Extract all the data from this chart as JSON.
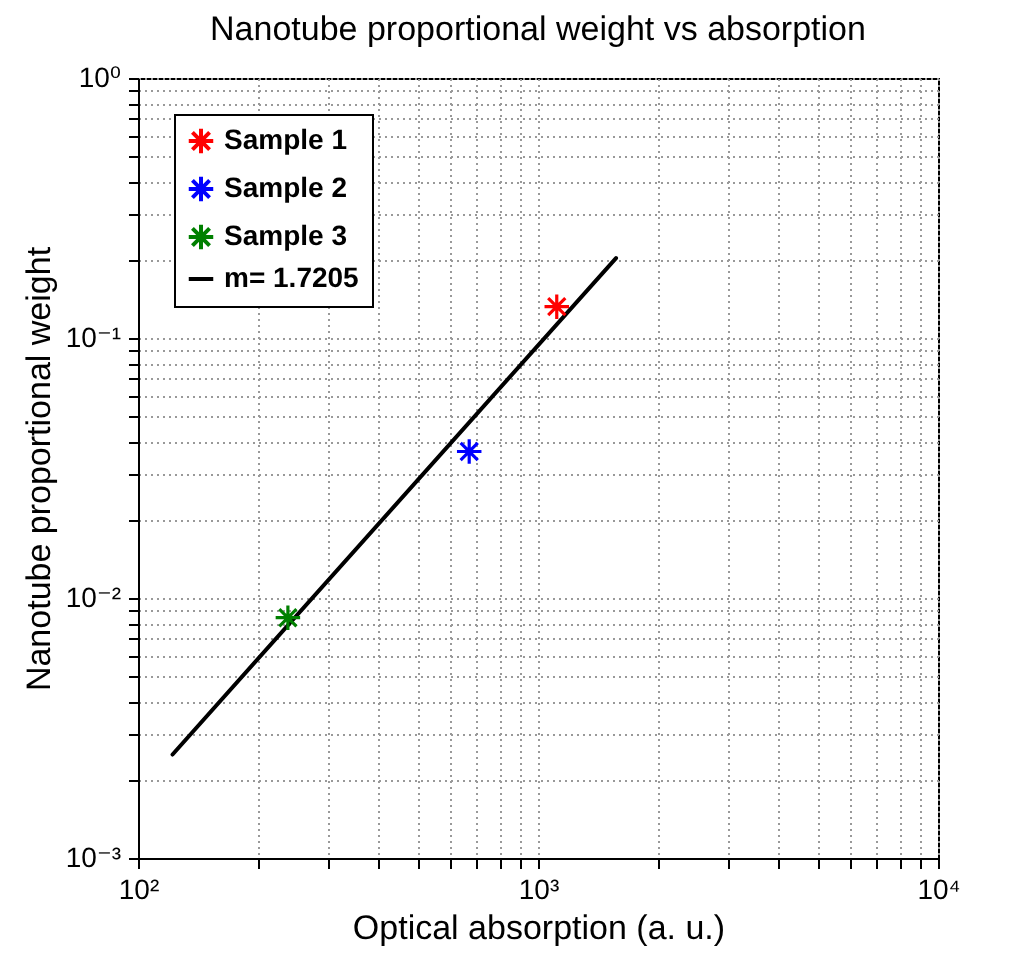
{
  "chart_data": {
    "type": "scatter",
    "title": "Nanotube proportional weight vs absorption",
    "xlabel": "Optical absorption (a. u.)",
    "ylabel": "Nanotube proportional weight",
    "log": "xy",
    "grid": true,
    "legend": "top left",
    "line_style": "solid",
    "xlim": [
      100,
      10000
    ],
    "ylim": [
      0.001,
      1
    ],
    "xticks": [
      {
        "value": 100,
        "label": "10²"
      },
      {
        "value": 200,
        "label": null
      },
      {
        "value": 300,
        "label": null
      },
      {
        "value": 400,
        "label": null
      },
      {
        "value": 500,
        "label": null
      },
      {
        "value": 600,
        "label": null
      },
      {
        "value": 700,
        "label": null
      },
      {
        "value": 800,
        "label": null
      },
      {
        "value": 900,
        "label": null
      },
      {
        "value": 1000,
        "label": "10³"
      },
      {
        "value": 2000,
        "label": null
      },
      {
        "value": 3000,
        "label": null
      },
      {
        "value": 4000,
        "label": null
      },
      {
        "value": 5000,
        "label": null
      },
      {
        "value": 6000,
        "label": null
      },
      {
        "value": 7000,
        "label": null
      },
      {
        "value": 8000,
        "label": null
      },
      {
        "value": 9000,
        "label": null
      },
      {
        "value": 10000,
        "label": "10⁴"
      }
    ],
    "yticks": [
      {
        "value": 0.001,
        "label": "10⁻³"
      },
      {
        "value": 0.002,
        "label": null
      },
      {
        "value": 0.003,
        "label": null
      },
      {
        "value": 0.004,
        "label": null
      },
      {
        "value": 0.005,
        "label": null
      },
      {
        "value": 0.006,
        "label": null
      },
      {
        "value": 0.007,
        "label": null
      },
      {
        "value": 0.008,
        "label": null
      },
      {
        "value": 0.009,
        "label": null
      },
      {
        "value": 0.01,
        "label": "10⁻²"
      },
      {
        "value": 0.02,
        "label": null
      },
      {
        "value": 0.03,
        "label": null
      },
      {
        "value": 0.04,
        "label": null
      },
      {
        "value": 0.05,
        "label": null
      },
      {
        "value": 0.06,
        "label": null
      },
      {
        "value": 0.07,
        "label": null
      },
      {
        "value": 0.08,
        "label": null
      },
      {
        "value": 0.09,
        "label": null
      },
      {
        "value": 0.1,
        "label": "10⁻¹"
      },
      {
        "value": 0.2,
        "label": null
      },
      {
        "value": 0.3,
        "label": null
      },
      {
        "value": 0.4,
        "label": null
      },
      {
        "value": 0.5,
        "label": null
      },
      {
        "value": 0.6,
        "label": null
      },
      {
        "value": 0.7,
        "label": null
      },
      {
        "value": 0.8,
        "label": null
      },
      {
        "value": 0.9,
        "label": null
      },
      {
        "value": 1,
        "label": "10⁰"
      }
    ],
    "series": [
      {
        "name": "Sample 1",
        "color": "#ff0000",
        "marker": "cross",
        "x": [
          1114
        ],
        "values": [
          0.132
        ]
      },
      {
        "name": "Sample 2",
        "color": "#0000ff",
        "marker": "cross",
        "x": [
          673
        ],
        "values": [
          0.0366
        ]
      },
      {
        "name": "Sample 3",
        "color": "#008000",
        "marker": "cross",
        "x": [
          237
        ],
        "values": [
          0.0084
        ]
      },
      {
        "name": "m= 1.7205",
        "type": "line",
        "color": "#000000",
        "x": [
          122,
          1567
        ],
        "values": [
          0.0025,
          0.203
        ]
      }
    ]
  }
}
